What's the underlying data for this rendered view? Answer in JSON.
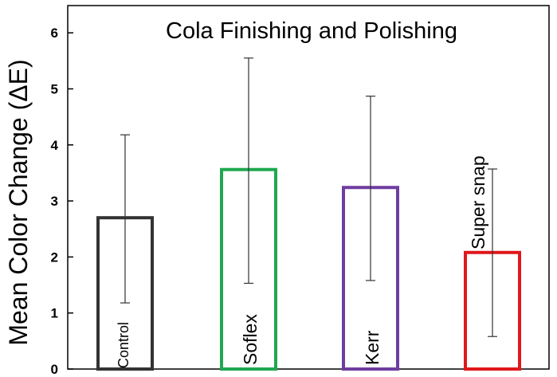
{
  "chart_data": {
    "type": "bar",
    "title": "Cola Finishing and Polishing",
    "xlabel": "",
    "ylabel": "Mean Color Change (ΔE)",
    "ylim": [
      0,
      6.5
    ],
    "yticks": [
      0,
      1,
      2,
      3,
      4,
      5,
      6
    ],
    "grid": false,
    "legend": "none",
    "bar_fill": "none",
    "categories": [
      "Control",
      "Soflex",
      "Kerr",
      "Super snap"
    ],
    "values": [
      2.7,
      3.56,
      3.24,
      2.08
    ],
    "error_low": [
      1.18,
      1.53,
      1.58,
      0.58
    ],
    "error_high": [
      4.18,
      5.55,
      4.87,
      3.57
    ],
    "colors": [
      "#333333",
      "#1fa84f",
      "#6f3da0",
      "#e0181b"
    ]
  }
}
